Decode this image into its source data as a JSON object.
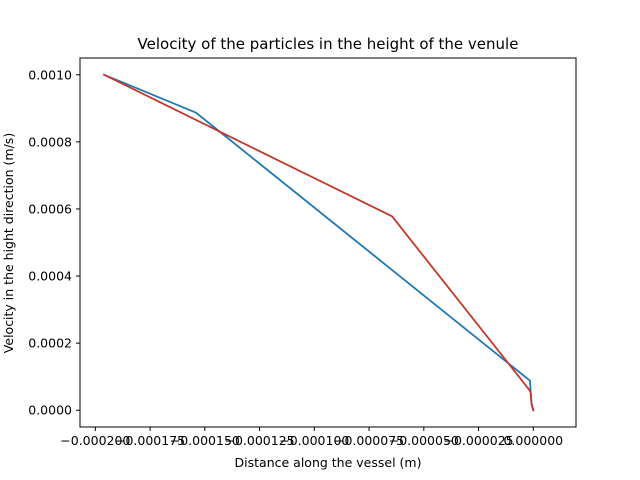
{
  "chart_data": {
    "type": "line",
    "title": "Velocity of the particles in the height of the venule",
    "xlabel": "Distance along the vessel (m)",
    "ylabel": "Velocity in the hight direction (m/s)",
    "xlim": [
      -0.000207,
      1.95e-05
    ],
    "ylim": [
      -5e-05,
      0.00105
    ],
    "x_ticks": [
      -0.0002,
      -0.000175,
      -0.00015,
      -0.000125,
      -0.0001,
      -7.5e-05,
      -5e-05,
      -2.5e-05,
      0.0
    ],
    "x_tick_labels": [
      "−0.000200",
      "−0.000175",
      "−0.000150",
      "−0.000125",
      "−0.000100",
      "−0.000075",
      "−0.000050",
      "−0.000025",
      "0.000000"
    ],
    "y_ticks": [
      0.0,
      0.0002,
      0.0004,
      0.0006,
      0.0008,
      0.001
    ],
    "y_tick_labels": [
      "0.0000",
      "0.0002",
      "0.0004",
      "0.0006",
      "0.0008",
      "0.0010"
    ],
    "grid": false,
    "series": [
      {
        "color": "#1f77b4",
        "x": [
          -0.000196,
          -0.000154,
          -1.5e-06,
          -1.2e-06,
          -8e-07,
          0.0
        ],
        "y": [
          0.001,
          0.000887,
          8.8e-05,
          5.5e-05,
          2e-05,
          0.0
        ]
      },
      {
        "color": "#c0392b",
        "x": [
          -0.000196,
          -6.45e-05,
          -1.5e-06,
          -1.2e-06,
          -8e-07,
          0.0
        ],
        "y": [
          0.001,
          0.000578,
          5.8e-05,
          5.2e-05,
          1.8e-05,
          0.0
        ]
      }
    ]
  }
}
